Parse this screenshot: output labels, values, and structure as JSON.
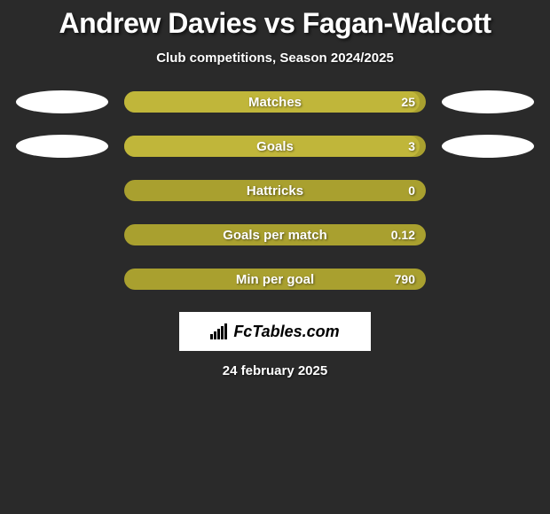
{
  "title": "Andrew Davies vs Fagan-Walcott",
  "subtitle": "Club competitions, Season 2024/2025",
  "date": "24 february 2025",
  "logo_text": "FcTables.com",
  "background_color": "#2a2a2a",
  "ellipse_color": "#ffffff",
  "bar_bg_color": "#a9a02f",
  "bar_fill_color": "#c0b63a",
  "rows": [
    {
      "label": "Matches",
      "value": "25",
      "fill_pct": 98,
      "show_ellipses": true
    },
    {
      "label": "Goals",
      "value": "3",
      "fill_pct": 98,
      "show_ellipses": true
    },
    {
      "label": "Hattricks",
      "value": "0",
      "fill_pct": 0,
      "show_ellipses": false
    },
    {
      "label": "Goals per match",
      "value": "0.12",
      "fill_pct": 0,
      "show_ellipses": false
    },
    {
      "label": "Min per goal",
      "value": "790",
      "fill_pct": 0,
      "show_ellipses": false
    }
  ]
}
